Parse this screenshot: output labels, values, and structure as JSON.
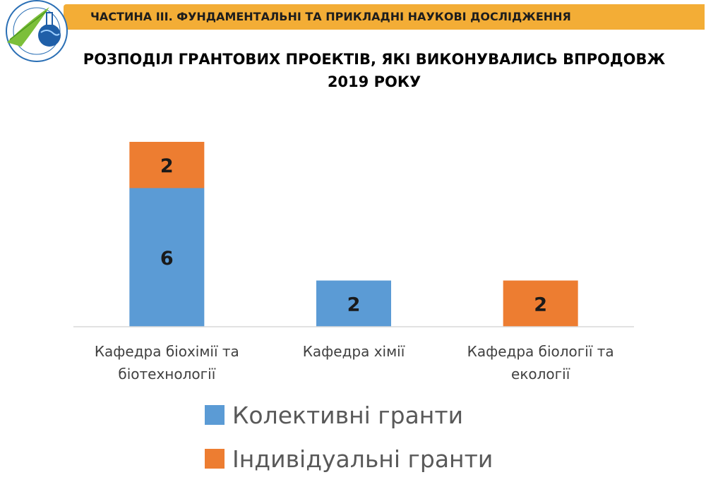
{
  "header": {
    "banner_title": "ЧАСТИНА ІІІ. ФУНДАМЕНТАЛЬНІ ТА ПРИКЛАДНІ НАУКОВІ ДОСЛІДЖЕННЯ"
  },
  "colors": {
    "banner": "#f3ad36",
    "collective": "#5b9bd5",
    "individual": "#ed7d31",
    "axis": "#d9d9d9"
  },
  "chart_data": {
    "type": "bar",
    "stacked": true,
    "title_lines": [
      "РОЗПОДІЛ ГРАНТОВИХ ПРОЕКТІВ, ЯКІ ВИКОНУВАЛИСЬ ВПРОДОВЖ",
      "2019 РОКУ"
    ],
    "categories": [
      [
        "Кафедра біохімії та",
        "біотехнології"
      ],
      [
        "Кафедра хімії"
      ],
      [
        "Кафедра біології та",
        "екології"
      ]
    ],
    "series": [
      {
        "name": "Колективні гранти",
        "values": [
          6,
          2,
          0
        ],
        "color": "#5b9bd5"
      },
      {
        "name": "Індивідуальні гранти",
        "values": [
          2,
          0,
          2
        ],
        "color": "#ed7d31"
      }
    ],
    "ylim": [
      0,
      8
    ],
    "grid": false,
    "legend": "bottom"
  }
}
